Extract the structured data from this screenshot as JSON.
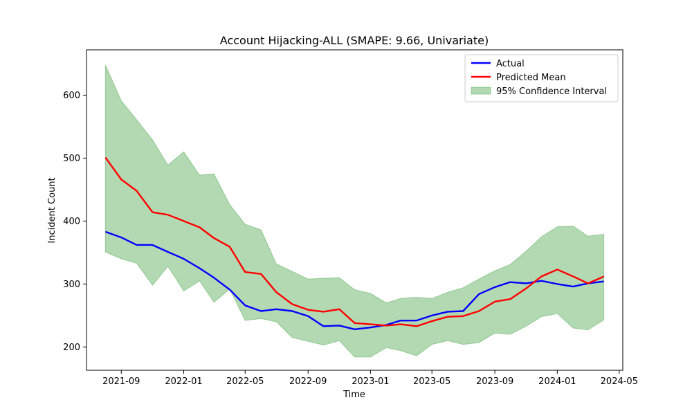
{
  "chart_data": {
    "type": "line",
    "title": "Account Hijacking-ALL (SMAPE: 9.66, Univariate)",
    "xlabel": "Time",
    "ylabel": "Incident Count",
    "x": [
      "2021-08-01",
      "2021-09-01",
      "2021-10-01",
      "2021-11-01",
      "2021-12-01",
      "2022-01-01",
      "2022-02-01",
      "2022-03-01",
      "2022-04-01",
      "2022-05-01",
      "2022-06-01",
      "2022-07-01",
      "2022-08-01",
      "2022-09-01",
      "2022-10-01",
      "2022-11-01",
      "2022-12-01",
      "2023-01-01",
      "2023-02-01",
      "2023-03-01",
      "2023-04-01",
      "2023-05-01",
      "2023-06-01",
      "2023-07-01",
      "2023-08-01",
      "2023-09-01",
      "2023-10-01",
      "2023-11-01",
      "2023-12-01",
      "2024-01-01",
      "2024-02-01",
      "2024-03-01",
      "2024-04-01"
    ],
    "xlim": [
      "2021-06-25",
      "2024-05-08"
    ],
    "ylim": [
      163,
      672
    ],
    "x_ticks": [
      {
        "date": "2021-09-01",
        "label": "2021-09"
      },
      {
        "date": "2022-01-01",
        "label": "2022-01"
      },
      {
        "date": "2022-05-01",
        "label": "2022-05"
      },
      {
        "date": "2022-09-01",
        "label": "2022-09"
      },
      {
        "date": "2023-01-01",
        "label": "2023-01"
      },
      {
        "date": "2023-05-01",
        "label": "2023-05"
      },
      {
        "date": "2023-09-01",
        "label": "2023-09"
      },
      {
        "date": "2024-01-01",
        "label": "2024-01"
      },
      {
        "date": "2024-05-01",
        "label": "2024-05"
      }
    ],
    "y_ticks": [
      200,
      300,
      400,
      500,
      600
    ],
    "grid": false,
    "legend_position": "top-right",
    "series": [
      {
        "name": "Actual",
        "color": "#0000ff",
        "values": [
          383,
          374,
          362,
          362,
          351,
          340,
          325,
          310,
          291,
          266,
          257,
          260,
          257,
          249,
          233,
          234,
          228,
          231,
          235,
          242,
          242,
          250,
          256,
          257,
          284,
          295,
          303,
          301,
          305,
          300,
          296,
          301,
          304
        ]
      },
      {
        "name": "Predicted Mean",
        "color": "#ff0000",
        "values": [
          501,
          466,
          448,
          414,
          410,
          400,
          390,
          373,
          359,
          319,
          316,
          287,
          268,
          259,
          256,
          260,
          238,
          236,
          234,
          236,
          233,
          241,
          248,
          249,
          257,
          272,
          276,
          293,
          312,
          323,
          312,
          301,
          312
        ]
      }
    ],
    "interval": {
      "name": "95% Confidence Interval",
      "color": "#008000",
      "opacity": 0.3,
      "lower": [
        351,
        340,
        333,
        298,
        328,
        289,
        305,
        271,
        292,
        242,
        245,
        240,
        215,
        209,
        203,
        210,
        184,
        184,
        199,
        194,
        186,
        204,
        210,
        204,
        207,
        222,
        220,
        233,
        248,
        253,
        230,
        227,
        243
      ],
      "upper": [
        648,
        591,
        561,
        529,
        489,
        510,
        473,
        475,
        426,
        395,
        386,
        332,
        320,
        308,
        309,
        310,
        291,
        285,
        270,
        277,
        279,
        277,
        287,
        294,
        308,
        321,
        331,
        352,
        375,
        391,
        392,
        376,
        379
      ]
    }
  }
}
